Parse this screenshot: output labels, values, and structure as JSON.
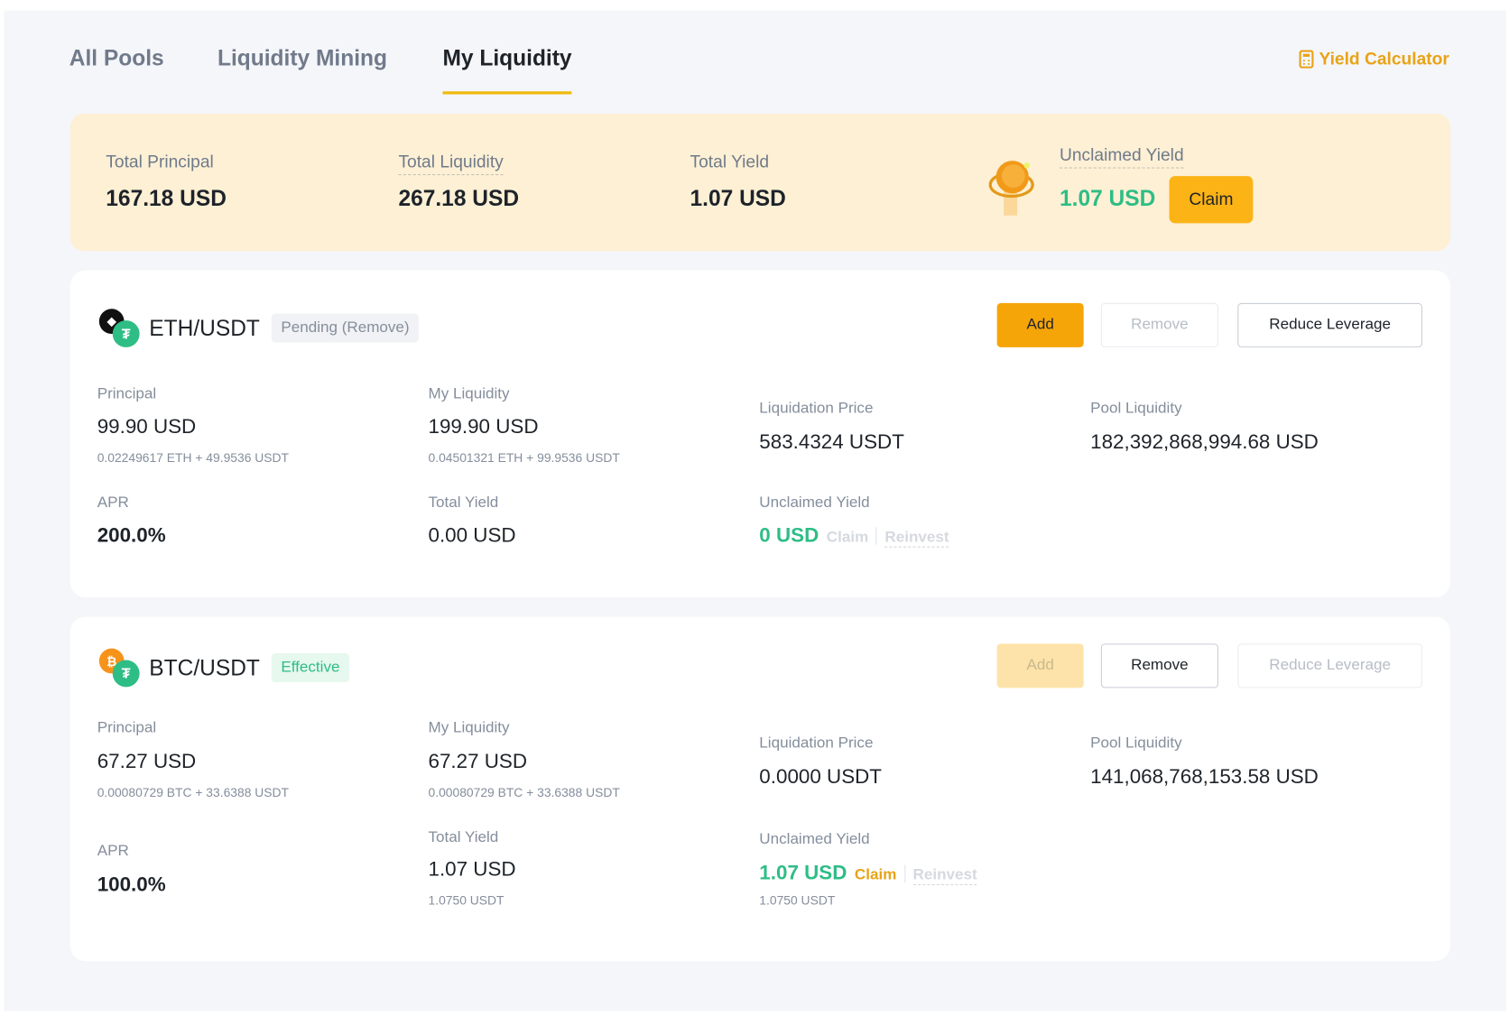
{
  "tabs": [
    {
      "label": "All Pools",
      "active": false
    },
    {
      "label": "Liquidity Mining",
      "active": false
    },
    {
      "label": "My Liquidity",
      "active": true
    }
  ],
  "yield_calculator": {
    "label": "Yield Calculator",
    "icon": "calculator-icon"
  },
  "summary": {
    "total_principal": {
      "label": "Total Principal",
      "value": "167.18 USD"
    },
    "total_liquidity": {
      "label": "Total Liquidity",
      "value": "267.18 USD"
    },
    "total_yield": {
      "label": "Total Yield",
      "value": "1.07 USD"
    },
    "unclaimed_yield": {
      "label": "Unclaimed Yield",
      "value": "1.07 USD",
      "claim_label": "Claim"
    }
  },
  "colors": {
    "accent": "#f6a508",
    "green": "#2ebd85",
    "summary_bg": "#fdf0d5"
  },
  "pools": [
    {
      "pair": "ETH/USDT",
      "base_icon": "eth-icon",
      "status": "Pending (Remove)",
      "status_type": "pending",
      "buttons": {
        "add": "Add",
        "remove": "Remove",
        "reduce": "Reduce Leverage"
      },
      "principal": {
        "label": "Principal",
        "value": "99.90 USD",
        "detail": "0.02249617 ETH + 49.9536 USDT"
      },
      "my_liquidity": {
        "label": "My Liquidity",
        "value": "199.90 USD",
        "detail": "0.04501321 ETH + 99.9536 USDT"
      },
      "liquidation_price": {
        "label": "Liquidation Price",
        "value": "583.4324 USDT"
      },
      "pool_liquidity": {
        "label": "Pool Liquidity",
        "value": "182,392,868,994.68 USD"
      },
      "apr": {
        "label": "APR",
        "value": "200.0%"
      },
      "total_yield": {
        "label": "Total Yield",
        "value": "0.00 USD"
      },
      "unclaimed_yield": {
        "label": "Unclaimed Yield",
        "value": "0 USD",
        "claim": "Claim",
        "reinvest": "Reinvest"
      }
    },
    {
      "pair": "BTC/USDT",
      "base_icon": "btc-icon",
      "status": "Effective",
      "status_type": "effective",
      "buttons": {
        "add": "Add",
        "remove": "Remove",
        "reduce": "Reduce Leverage"
      },
      "principal": {
        "label": "Principal",
        "value": "67.27 USD",
        "detail": "0.00080729 BTC + 33.6388 USDT"
      },
      "my_liquidity": {
        "label": "My Liquidity",
        "value": "67.27 USD",
        "detail": "0.00080729 BTC + 33.6388 USDT"
      },
      "liquidation_price": {
        "label": "Liquidation Price",
        "value": "0.0000 USDT"
      },
      "pool_liquidity": {
        "label": "Pool Liquidity",
        "value": "141,068,768,153.58 USD"
      },
      "apr": {
        "label": "APR",
        "value": "100.0%"
      },
      "total_yield": {
        "label": "Total Yield",
        "value": "1.07 USD",
        "detail": "1.0750 USDT"
      },
      "unclaimed_yield": {
        "label": "Unclaimed Yield",
        "value": "1.07 USD",
        "claim": "Claim",
        "reinvest": "Reinvest",
        "detail": "1.0750 USDT"
      }
    }
  ]
}
